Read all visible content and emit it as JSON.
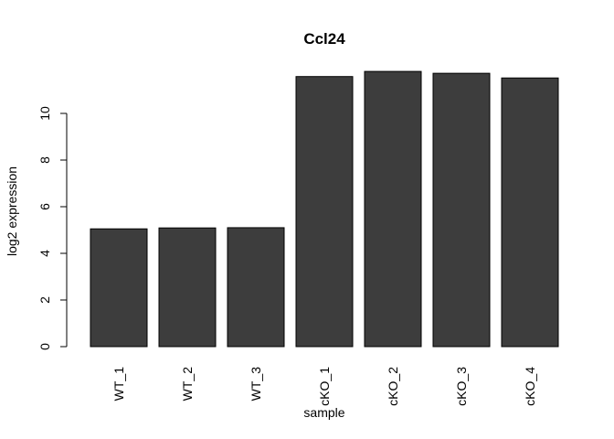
{
  "chart_data": {
    "type": "bar",
    "title": "Ccl24",
    "xlabel": "sample",
    "ylabel": "log2 expression",
    "categories": [
      "WT_1",
      "WT_2",
      "WT_3",
      "cKO_1",
      "cKO_2",
      "cKO_3",
      "cKO_4"
    ],
    "values": [
      5.05,
      5.09,
      5.1,
      11.58,
      11.8,
      11.72,
      11.52
    ],
    "yticks": [
      0,
      2,
      4,
      6,
      8,
      10
    ],
    "ylim": [
      0,
      11.8
    ],
    "grid": false,
    "legend": "none",
    "colors": {
      "bar_fill": "#3d3d3d",
      "bar_stroke": "#000000"
    }
  }
}
